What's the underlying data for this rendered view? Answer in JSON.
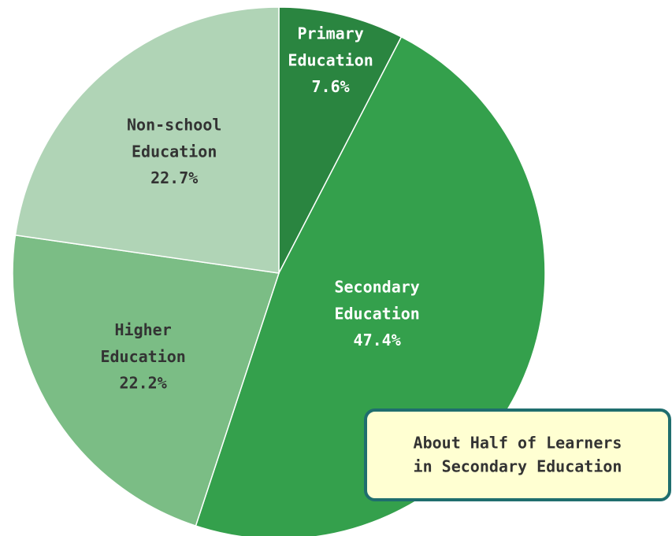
{
  "chart_data": {
    "type": "pie",
    "categories": [
      "Primary Education",
      "Secondary Education",
      "Higher Education",
      "Non-school Education"
    ],
    "values": [
      7.6,
      47.4,
      22.2,
      22.7
    ],
    "value_labels": [
      "7.6%",
      "47.4%",
      "22.2%",
      "22.7%"
    ],
    "colors": [
      "#2a8540",
      "#34a04c",
      "#7bbd85",
      "#b0d4b6"
    ],
    "annotation": [
      "About Half of Learners",
      "in Secondary Education"
    ]
  }
}
